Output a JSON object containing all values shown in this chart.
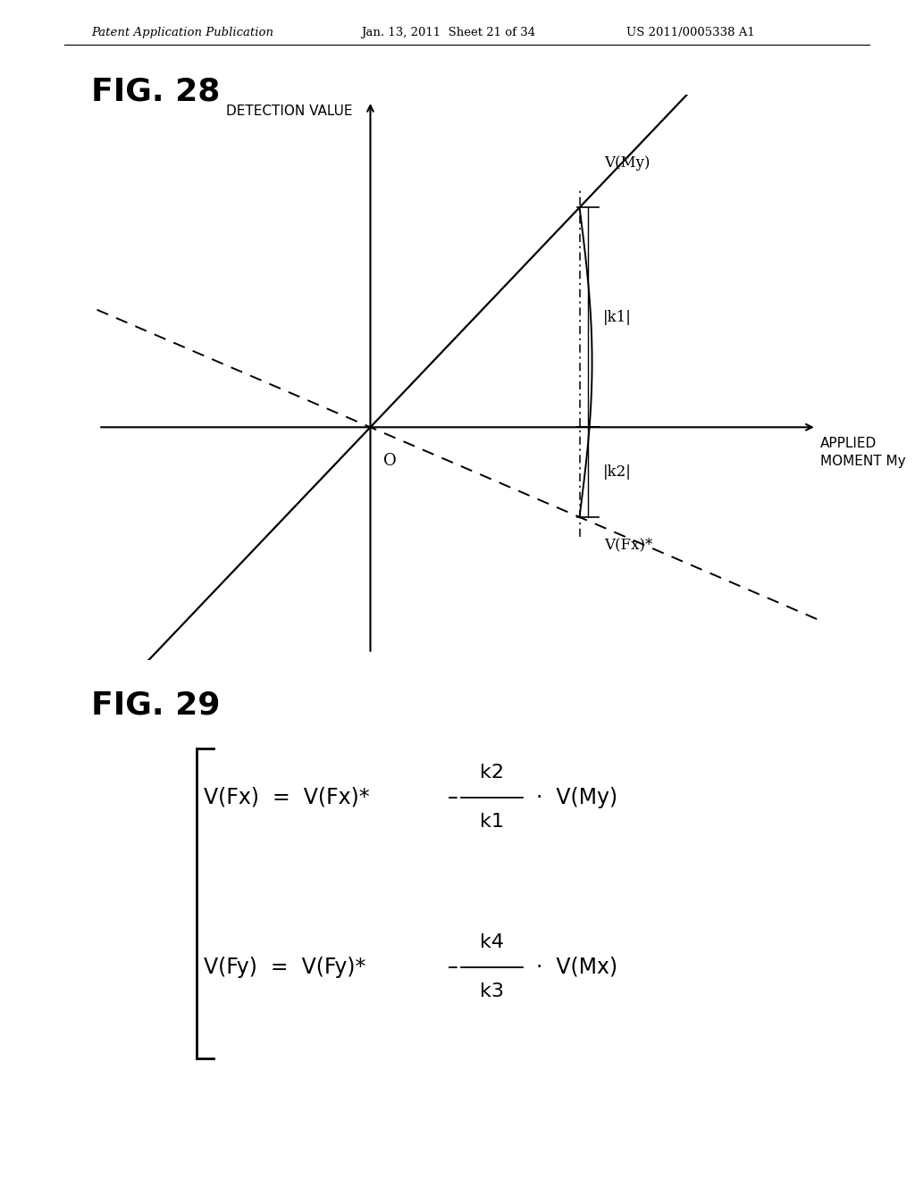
{
  "fig28_title": "FIG. 28",
  "fig29_title": "FIG. 29",
  "header_left": "Patent Application Publication",
  "header_mid": "Jan. 13, 2011  Sheet 21 of 34",
  "header_right": "US 2011/0005338 A1",
  "axis_xlabel": "APPLIED\nMOMENT My",
  "axis_ylabel": "DETECTION VALUE",
  "origin_label": "O",
  "label_VMy": "V(My)",
  "label_VFx": "V(Fx)*",
  "label_k1": "|k1|",
  "label_k2": "|k2|",
  "bg_color": "#ffffff",
  "solid_slope": 1.1,
  "dashed_slope": -0.45,
  "vert_x": 3.0,
  "xlim": [
    -4,
    6.5
  ],
  "ylim": [
    -3.5,
    5.0
  ]
}
